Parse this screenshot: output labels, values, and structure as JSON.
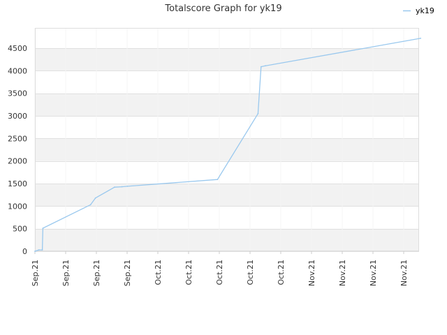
{
  "chart_data": {
    "type": "line",
    "title": "Totalscore Graph for yk19",
    "xlabel": "",
    "ylabel": "",
    "ylim": [
      0,
      4950
    ],
    "yticks": [
      0,
      500,
      1000,
      1500,
      2000,
      2500,
      3000,
      3500,
      4000,
      4500
    ],
    "xtick_labels": [
      "Sep.21",
      "Sep.21",
      "Sep.21",
      "Sep.21",
      "Oct.21",
      "Oct.21",
      "Oct.21",
      "Oct.21",
      "Oct.21",
      "Nov.21",
      "Nov.21",
      "Nov.21",
      "Nov.21"
    ],
    "grid": true,
    "legend_position": "top-right",
    "line_color": "#99c8ee",
    "series": [
      {
        "name": "yk19",
        "x": [
          0.0,
          0.13,
          0.24,
          0.26,
          1.81,
          1.97,
          2.59,
          2.83,
          3.01,
          5.94,
          7.26,
          7.36,
          7.5,
          12.55
        ],
        "values": [
          0,
          30,
          30,
          510,
          1030,
          1180,
          1420,
          1430,
          1440,
          1590,
          3050,
          4090,
          4110,
          4720
        ]
      }
    ]
  }
}
